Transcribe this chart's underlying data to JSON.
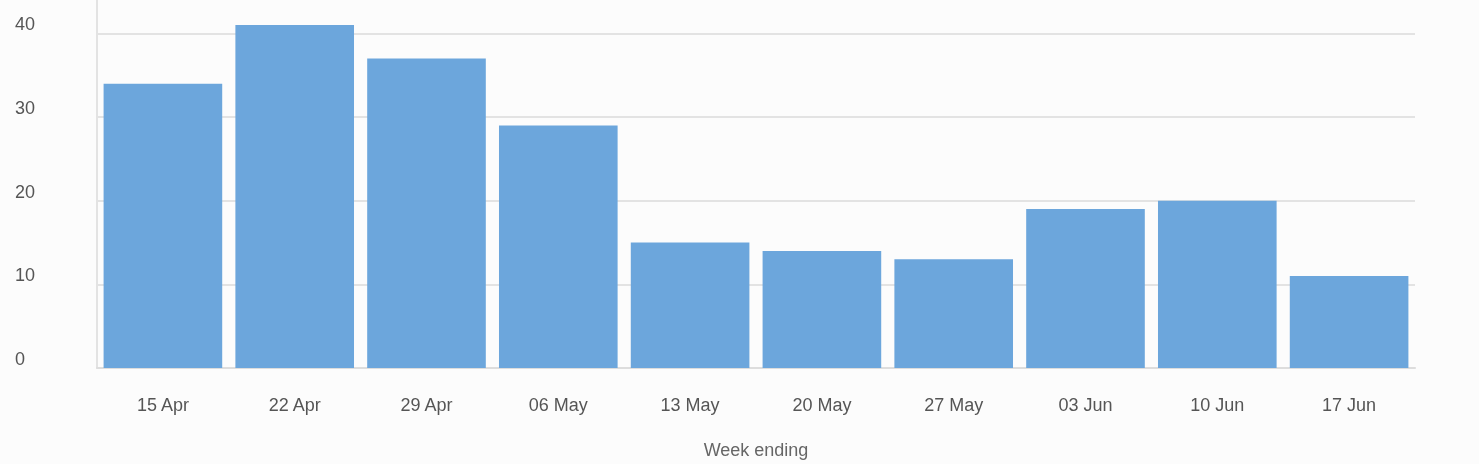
{
  "chart_data": {
    "type": "bar",
    "xlabel": "Week ending",
    "categories": [
      "15 Apr",
      "22 Apr",
      "29 Apr",
      "06 May",
      "13 May",
      "20 May",
      "27 May",
      "03 Jun",
      "10 Jun",
      "17 Jun"
    ],
    "values": [
      34,
      41,
      37,
      29,
      15,
      14,
      13,
      19,
      20,
      11
    ],
    "color": "#6ca6dc",
    "ylim": [
      0,
      44
    ],
    "yticks": [
      0,
      10,
      20,
      30,
      40
    ],
    "grid": "y"
  }
}
